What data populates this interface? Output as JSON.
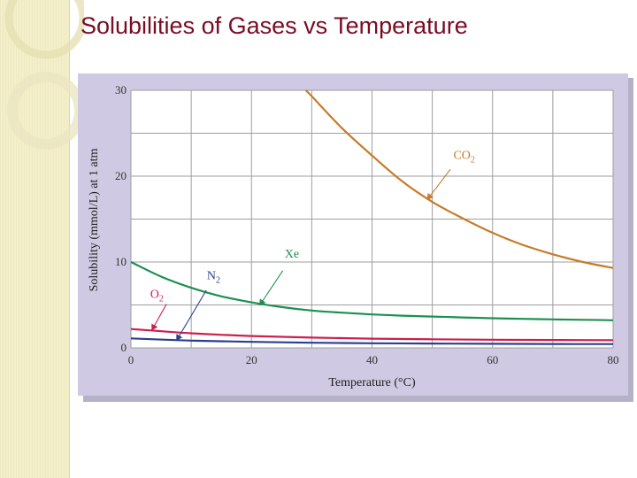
{
  "slide": {
    "title": "Solubilities of Gases vs Temperature"
  },
  "colors": {
    "title": "#7a0c23",
    "strip": "#f3efc9",
    "panel": "#cfc9e4",
    "grid": "#9e9e9e"
  },
  "chart_data": {
    "type": "line",
    "title": "",
    "xlabel": "Temperature (°C)",
    "ylabel": "Solubility (mmol/L) at 1 atm",
    "xlim": [
      0,
      80
    ],
    "ylim": [
      0,
      30
    ],
    "xticks": [
      0,
      20,
      40,
      60,
      80
    ],
    "yticks": [
      0,
      10,
      20,
      30
    ],
    "x_gridlines": [
      0,
      10,
      20,
      30,
      40,
      50,
      60,
      70,
      80
    ],
    "y_gridlines": [
      0,
      5,
      10,
      15,
      20,
      25,
      30
    ],
    "grid": true,
    "series": [
      {
        "name": "CO2",
        "label_main": "CO",
        "label_sub": "2",
        "color": "#c97a2a",
        "x": [
          29,
          30,
          35,
          40,
          45,
          50,
          55,
          60,
          65,
          70,
          75,
          80
        ],
        "y": [
          30,
          29.3,
          25.6,
          22.4,
          19.4,
          17.0,
          15.1,
          13.4,
          12.0,
          10.9,
          10.0,
          9.3
        ]
      },
      {
        "name": "Xe",
        "label_main": "Xe",
        "label_sub": "",
        "color": "#1c9050",
        "x": [
          0,
          5,
          10,
          15,
          20,
          25,
          30,
          35,
          40,
          45,
          50,
          55,
          60,
          65,
          70,
          75,
          80
        ],
        "y": [
          10.0,
          8.3,
          7.0,
          6.0,
          5.3,
          4.75,
          4.35,
          4.1,
          3.9,
          3.75,
          3.65,
          3.55,
          3.45,
          3.38,
          3.32,
          3.27,
          3.22
        ]
      },
      {
        "name": "O2",
        "label_main": "O",
        "label_sub": "2",
        "color": "#cc1f4e",
        "x": [
          0,
          10,
          20,
          30,
          40,
          50,
          60,
          70,
          80
        ],
        "y": [
          2.2,
          1.7,
          1.38,
          1.2,
          1.07,
          1.0,
          0.95,
          0.92,
          0.9
        ]
      },
      {
        "name": "N2",
        "label_main": "N",
        "label_sub": "2",
        "color": "#2c3f8e",
        "x": [
          0,
          10,
          20,
          30,
          40,
          50,
          60,
          70,
          80
        ],
        "y": [
          1.1,
          0.85,
          0.7,
          0.6,
          0.54,
          0.5,
          0.47,
          0.45,
          0.44
        ]
      }
    ],
    "annotations": [
      {
        "series": "CO2",
        "text_x": 53.5,
        "text_y": 22.0,
        "arrow_from": [
          53.0,
          20.8
        ],
        "arrow_to": [
          49.2,
          17.3
        ]
      },
      {
        "series": "Xe",
        "text_x": 25.5,
        "text_y": 10.5,
        "arrow_from": [
          25.2,
          9.0
        ],
        "arrow_to": [
          21.4,
          5.0
        ]
      },
      {
        "series": "N2",
        "text_x": 12.6,
        "text_y": 8.0,
        "arrow_from": [
          12.5,
          6.7
        ],
        "arrow_to": [
          7.6,
          0.9
        ]
      },
      {
        "series": "O2",
        "text_x": 3.2,
        "text_y": 5.8,
        "arrow_from": [
          5.9,
          5.1
        ],
        "arrow_to": [
          3.5,
          2.1
        ]
      }
    ]
  }
}
